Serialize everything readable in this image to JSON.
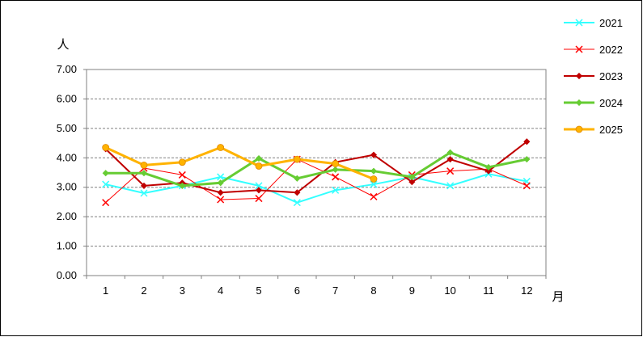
{
  "chart_data": {
    "type": "line",
    "ylabel": "人",
    "xlabel": "月",
    "categories": [
      "1",
      "2",
      "3",
      "4",
      "5",
      "6",
      "7",
      "8",
      "9",
      "10",
      "11",
      "12"
    ],
    "ylim": [
      0,
      7
    ],
    "y_ticks": [
      "0.00",
      "1.00",
      "2.00",
      "3.00",
      "4.00",
      "5.00",
      "6.00",
      "7.00"
    ],
    "grid": "horizontal dashed",
    "legend_position": "right",
    "series": [
      {
        "name": "2021",
        "color": "#33FFFF",
        "marker": "x",
        "width": 2,
        "values": [
          3.1,
          2.8,
          3.05,
          3.35,
          3.05,
          2.48,
          2.9,
          3.1,
          3.35,
          3.05,
          3.45,
          3.2
        ]
      },
      {
        "name": "2022",
        "color": "#FF0000",
        "marker": "x",
        "width": 1,
        "values": [
          2.48,
          3.65,
          3.42,
          2.58,
          2.62,
          3.95,
          3.35,
          2.68,
          3.42,
          3.55,
          3.62,
          3.05
        ]
      },
      {
        "name": "2023",
        "color": "#C00000",
        "marker": "diamond",
        "width": 2,
        "values": [
          4.3,
          3.05,
          3.15,
          2.82,
          2.9,
          2.82,
          3.85,
          4.1,
          3.18,
          3.95,
          3.55,
          4.55
        ]
      },
      {
        "name": "2024",
        "color": "#66CC33",
        "marker": "diamond",
        "width": 3,
        "values": [
          3.48,
          3.48,
          3.05,
          3.15,
          3.98,
          3.3,
          3.6,
          3.55,
          3.35,
          4.18,
          3.68,
          3.95
        ]
      },
      {
        "name": "2025",
        "color": "#FFB300",
        "marker": "circle",
        "width": 3,
        "values": [
          4.35,
          3.75,
          3.85,
          4.35,
          3.72,
          3.95,
          3.8,
          3.28,
          null,
          null,
          null,
          null
        ]
      }
    ]
  }
}
